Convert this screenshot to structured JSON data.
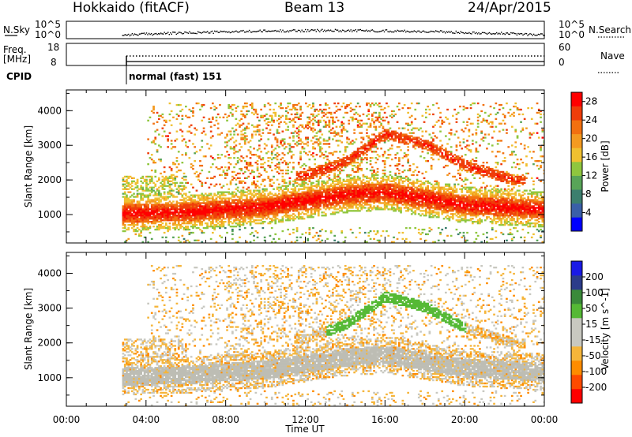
{
  "header": {
    "station": "Hokkaido (fitACF)",
    "beam": "Beam 13",
    "date": "24/Apr/2015"
  },
  "sidepanels": {
    "nsky_label": "N.Sky",
    "nsky_ticks": [
      "10^5",
      "10^0"
    ],
    "nsearch_label": "N.Search",
    "nsearch_ticks": [
      "10^5",
      "10^0"
    ],
    "freq_label_1": "Freq.",
    "freq_label_2": "[MHz]",
    "freq_ticks": [
      "18",
      "8"
    ],
    "nave_label": "Nave",
    "nave_ticks": [
      "60",
      "0"
    ],
    "cpid_label": "CPID",
    "cpid_value": "normal (fast) 151"
  },
  "colors": {
    "power_scale": [
      "#0000ff",
      "#3a5fa8",
      "#3c7f6e",
      "#58a458",
      "#8fc63e",
      "#f0c030",
      "#f49a20",
      "#f27010",
      "#ef3d0a",
      "#ff0000"
    ],
    "velocity_scale": [
      "#ff0000",
      "#ff4a00",
      "#ff8c00",
      "#f5b53a",
      "#c8c8c0",
      "#c8c8c0",
      "#55b935",
      "#3a8a3a",
      "#2c3c8a",
      "#1a1ae6"
    ],
    "ground_scatter": "#bdbdb4"
  },
  "chart_data": [
    {
      "type": "heatmap",
      "title": "Power",
      "xlabel": "Time UT",
      "ylabel": "Slant Range [km]",
      "colorbar_label": "Power [dB]",
      "colorbar_ticks": [
        "28",
        "24",
        "20",
        "16",
        "12",
        "8",
        "4"
      ],
      "colorbar_range": [
        0,
        30
      ],
      "xlim": [
        0,
        24
      ],
      "ylim": [
        180,
        4600
      ],
      "x_ticks": [
        "00:00",
        "04:00",
        "08:00",
        "12:00",
        "16:00",
        "20:00",
        "00:00"
      ],
      "y_ticks": [
        "1000",
        "2000",
        "3000",
        "4000"
      ],
      "data_start_hour": 2.8,
      "main_echo_band": {
        "center_km": [
          [
            2.8,
            1000
          ],
          [
            6,
            1050
          ],
          [
            10,
            1200
          ],
          [
            14,
            1550
          ],
          [
            16,
            1620
          ],
          [
            20,
            1250
          ],
          [
            24,
            1120
          ]
        ],
        "typical_power_db": 27
      },
      "upper_echo_band": {
        "center_km": [
          [
            12,
            2100
          ],
          [
            14,
            2500
          ],
          [
            16,
            3300
          ],
          [
            18,
            3000
          ],
          [
            20,
            2400
          ],
          [
            22.5,
            1950
          ]
        ],
        "typical_power_db": 26
      }
    },
    {
      "type": "heatmap",
      "title": "Velocity",
      "xlabel": "Time UT",
      "ylabel": "Slant Range [km]",
      "colorbar_label": "Velocity [m s^-1]",
      "colorbar_ticks": [
        "200",
        "100",
        "50",
        "15",
        "-15",
        "-50",
        "-100",
        "-200"
      ],
      "colorbar_range": [
        -250,
        250
      ],
      "xlim": [
        0,
        24
      ],
      "ylim": [
        180,
        4600
      ],
      "x_ticks": [
        "00:00",
        "04:00",
        "08:00",
        "12:00",
        "16:00",
        "20:00",
        "00:00"
      ],
      "y_ticks": [
        "1000",
        "2000",
        "3000",
        "4000"
      ],
      "data_start_hour": 2.8,
      "ground_scatter_band": {
        "center_km": [
          [
            2.8,
            1000
          ],
          [
            6,
            1050
          ],
          [
            10,
            1200
          ],
          [
            14,
            1550
          ],
          [
            16,
            1620
          ],
          [
            20,
            1250
          ],
          [
            24,
            1120
          ]
        ]
      },
      "typical_velocity_ms": -60
    }
  ],
  "time_series": {
    "nsky_level": 0.45,
    "freq_mhz": 12,
    "nave": 10
  }
}
